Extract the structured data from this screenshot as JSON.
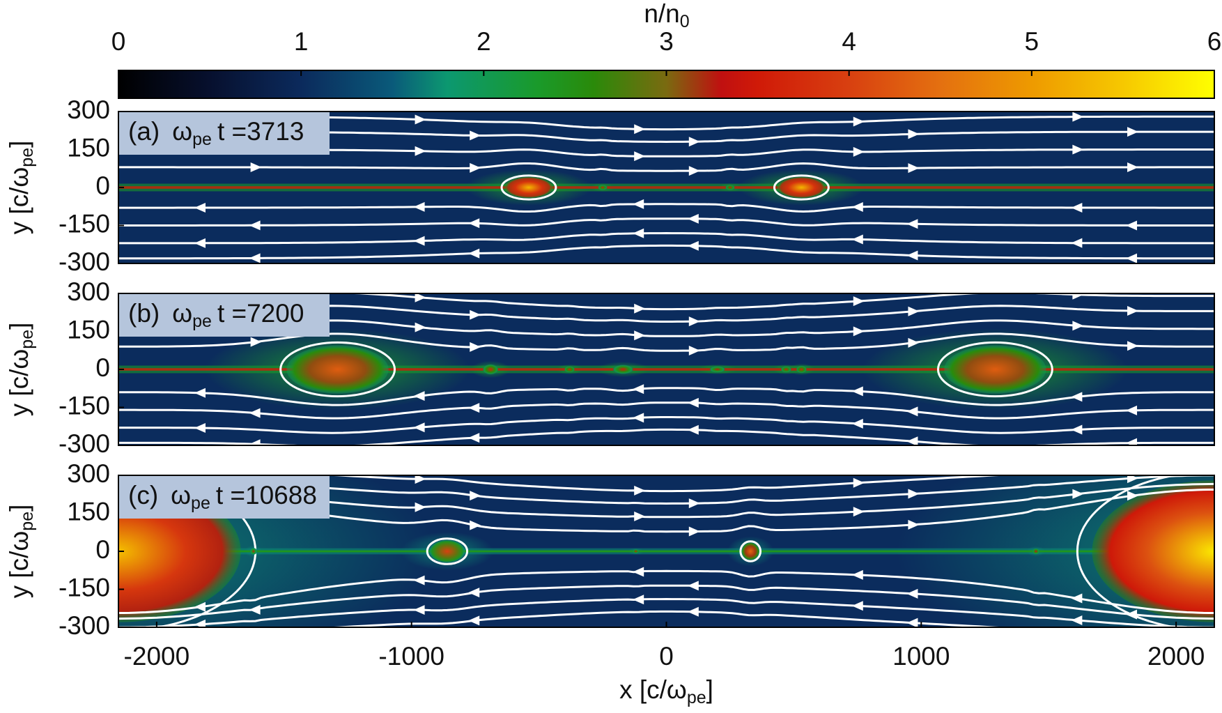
{
  "colorbar": {
    "title": "n/n",
    "title_sub": "0",
    "lim": [
      0,
      6
    ],
    "ticks": [
      0,
      1,
      2,
      3,
      4,
      5,
      6
    ],
    "colormap": [
      [
        0,
        "#000000"
      ],
      [
        0.5,
        "#07102e"
      ],
      [
        1,
        "#0b2a5c"
      ],
      [
        1.5,
        "#0a5a7a"
      ],
      [
        1.8,
        "#0c9870"
      ],
      [
        2.3,
        "#1a9a2a"
      ],
      [
        2.6,
        "#2a8a0a"
      ],
      [
        3,
        "#7a6a10"
      ],
      [
        3.3,
        "#c01010"
      ],
      [
        3.5,
        "#d01a08"
      ],
      [
        4,
        "#d84010"
      ],
      [
        4.5,
        "#e47010"
      ],
      [
        5,
        "#ee9a00"
      ],
      [
        5.5,
        "#f6c800"
      ],
      [
        6,
        "#ffff00"
      ]
    ]
  },
  "chart_data": [
    {
      "type": "heatmap",
      "label": "(a)",
      "label_symbol": "ω",
      "label_sub": "pe",
      "label_text": "t =3713",
      "ylabel": "y [c/ω",
      "ylabel_sub": "pe",
      "ylabel_end": "]",
      "xlim": [
        -2150,
        2150
      ],
      "ylim": [
        -300,
        300
      ],
      "yticks": [
        300,
        150,
        0,
        -150,
        -300
      ],
      "background": 1.02,
      "sheet_n": 3.2,
      "sheet_thickness": 10,
      "plasmoids": [
        {
          "x": -540,
          "hw": 95,
          "hh": 42,
          "n": 5.3
        },
        {
          "x": 530,
          "hw": 95,
          "hh": 42,
          "n": 5.3
        },
        {
          "x": -250,
          "hw": 18,
          "hh": 10,
          "n": 3.5
        },
        {
          "x": 250,
          "hw": 18,
          "hh": 10,
          "n": 3.5
        }
      ],
      "field_lines": [
        280,
        220,
        150,
        80,
        -80,
        -150,
        -220,
        -280
      ]
    },
    {
      "type": "heatmap",
      "label": "(b)",
      "label_symbol": "ω",
      "label_sub": "pe",
      "label_text": "t =7200",
      "ylabel": "y [c/ω",
      "ylabel_sub": "pe",
      "ylabel_end": "]",
      "xlim": [
        -2150,
        2150
      ],
      "ylim": [
        -300,
        300
      ],
      "yticks": [
        300,
        150,
        0,
        -150,
        -300
      ],
      "background": 1.02,
      "sheet_n": 3.2,
      "sheet_thickness": 10,
      "plasmoids": [
        {
          "x": -1290,
          "hw": 200,
          "hh": 95,
          "n": 4.3
        },
        {
          "x": 1290,
          "hw": 200,
          "hh": 95,
          "n": 4.3
        },
        {
          "x": -690,
          "hw": 30,
          "hh": 20,
          "n": 3.6
        },
        {
          "x": -380,
          "hw": 20,
          "hh": 12,
          "n": 3.6
        },
        {
          "x": -170,
          "hw": 40,
          "hh": 18,
          "n": 3.5
        },
        {
          "x": 200,
          "hw": 30,
          "hh": 12,
          "n": 3.4
        },
        {
          "x": 470,
          "hw": 20,
          "hh": 12,
          "n": 3.5
        },
        {
          "x": 530,
          "hw": 20,
          "hh": 14,
          "n": 3.6
        }
      ],
      "field_lines": [
        290,
        230,
        160,
        90,
        -90,
        -160,
        -230,
        -290
      ]
    },
    {
      "type": "heatmap",
      "label": "(c)",
      "label_symbol": "ω",
      "label_sub": "pe",
      "label_text": "t =10688",
      "ylabel": "y [c/ω",
      "ylabel_sub": "pe",
      "ylabel_end": "]",
      "xlabel": "x [c/ω",
      "xlabel_sub": "pe",
      "xlabel_end": "]",
      "xlim": [
        -2150,
        2150
      ],
      "ylim": [
        -300,
        300
      ],
      "yticks": [
        300,
        150,
        0,
        -150,
        -300
      ],
      "xticks": [
        -2000,
        -1000,
        0,
        1000,
        2000
      ],
      "background": 1.02,
      "sheet_n": 2.4,
      "sheet_thickness": 8,
      "plasmoids": [
        {
          "x": -2150,
          "hw": 480,
          "hh": 280,
          "n": 5.4
        },
        {
          "x": 2150,
          "hw": 480,
          "hh": 280,
          "n": 5.8
        },
        {
          "x": -1620,
          "hw": 14,
          "hh": 14,
          "n": 3.2
        },
        {
          "x": -860,
          "hw": 70,
          "hh": 45,
          "n": 4
        },
        {
          "x": -120,
          "hw": 12,
          "hh": 8,
          "n": 3.5
        },
        {
          "x": 330,
          "hw": 35,
          "hh": 35,
          "n": 4.4
        },
        {
          "x": 1450,
          "hw": 14,
          "hh": 12,
          "n": 3.4
        }
      ],
      "field_lines": [
        290,
        230,
        165,
        95,
        -95,
        -165,
        -230,
        -290
      ]
    }
  ]
}
